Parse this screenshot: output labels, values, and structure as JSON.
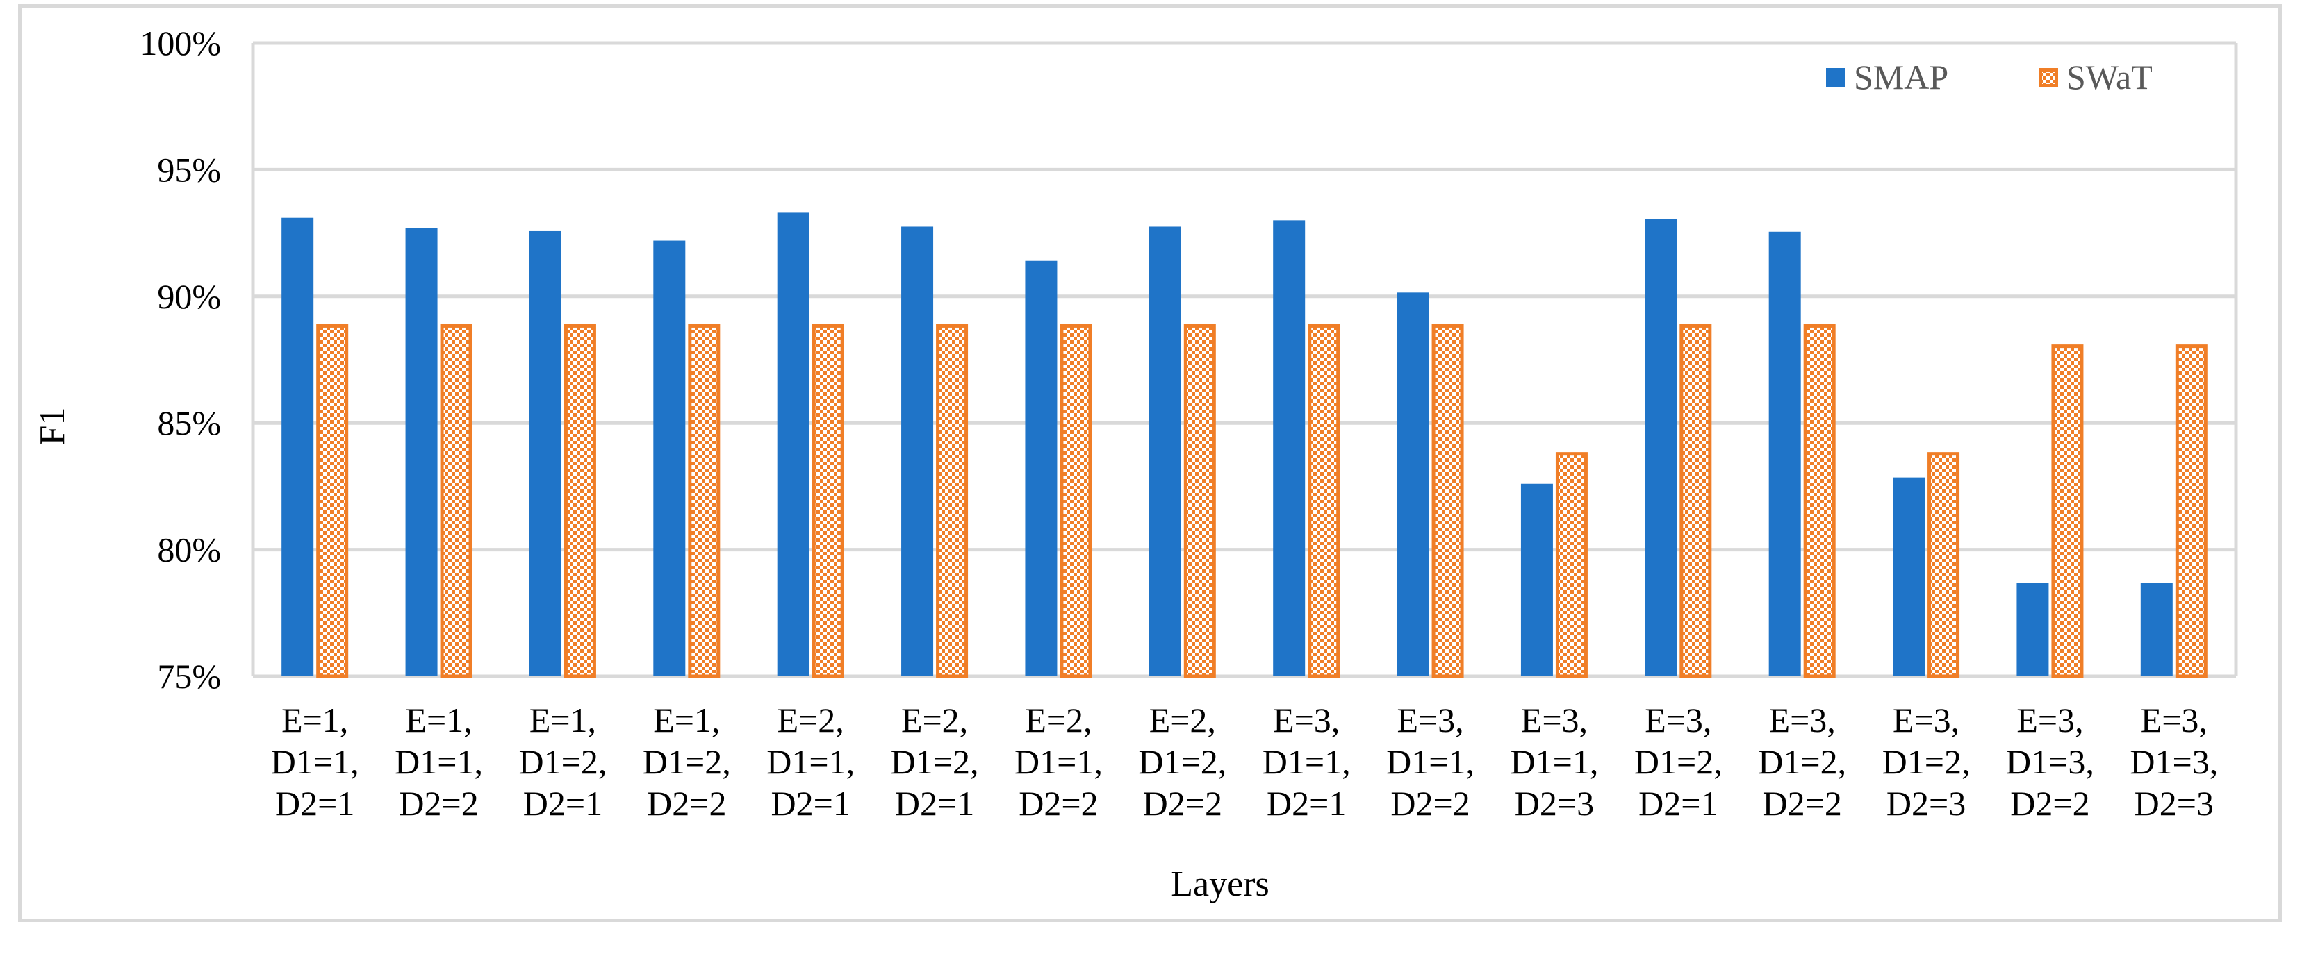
{
  "chart_data": {
    "type": "bar",
    "title": "",
    "xlabel": "Layers",
    "ylabel": "F1",
    "ylim": [
      75,
      100
    ],
    "yticks": [
      "75%",
      "80%",
      "85%",
      "90%",
      "95%",
      "100%"
    ],
    "grid": true,
    "legend_position": "top-right",
    "categories": [
      [
        "E=1,",
        "D1=1,",
        "D2=1"
      ],
      [
        "E=1,",
        "D1=1,",
        "D2=2"
      ],
      [
        "E=1,",
        "D1=2,",
        "D2=1"
      ],
      [
        "E=1,",
        "D1=2,",
        "D2=2"
      ],
      [
        "E=2,",
        "D1=1,",
        "D2=1"
      ],
      [
        "E=2,",
        "D1=2,",
        "D2=1"
      ],
      [
        "E=2,",
        "D1=1,",
        "D2=2"
      ],
      [
        "E=2,",
        "D1=2,",
        "D2=2"
      ],
      [
        "E=3,",
        "D1=1,",
        "D2=1"
      ],
      [
        "E=3,",
        "D1=1,",
        "D2=2"
      ],
      [
        "E=3,",
        "D1=1,",
        "D2=3"
      ],
      [
        "E=3,",
        "D1=2,",
        "D2=1"
      ],
      [
        "E=3,",
        "D1=2,",
        "D2=2"
      ],
      [
        "E=3,",
        "D1=2,",
        "D2=3"
      ],
      [
        "E=3,",
        "D1=3,",
        "D2=2"
      ],
      [
        "E=3,",
        "D1=3,",
        "D2=3"
      ]
    ],
    "series": [
      {
        "name": "SMAP",
        "color": "#1f74c8",
        "pattern": "solid",
        "values": [
          93.1,
          92.7,
          92.6,
          92.2,
          93.3,
          92.75,
          91.4,
          92.75,
          93.0,
          90.15,
          82.6,
          93.05,
          92.55,
          82.85,
          78.7,
          78.7
        ]
      },
      {
        "name": "SWaT",
        "color": "#f07e27",
        "pattern": "dotted-hatch",
        "values": [
          88.9,
          88.9,
          88.9,
          88.9,
          88.9,
          88.9,
          88.9,
          88.9,
          88.9,
          88.9,
          83.85,
          88.9,
          88.9,
          83.85,
          88.1,
          88.1
        ]
      }
    ]
  }
}
